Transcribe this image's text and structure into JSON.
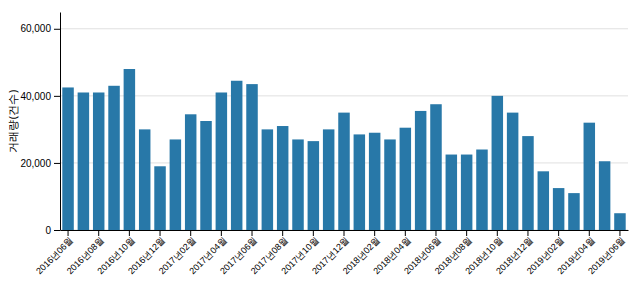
{
  "chart_data": {
    "type": "bar",
    "categories": [
      "2016년06월",
      null,
      "2016년08월",
      null,
      "2016년10월",
      null,
      "2016년12월",
      null,
      "2017년02월",
      null,
      "2017년04월",
      null,
      "2017년06월",
      null,
      "2017년08월",
      null,
      "2017년10월",
      null,
      "2017년12월",
      null,
      "2018년02월",
      null,
      "2018년04월",
      null,
      "2018년06월",
      null,
      "2018년08월",
      null,
      "2018년10월",
      null,
      "2018년12월",
      null,
      "2019년02월",
      null,
      "2019년04월",
      null,
      "2019년06월"
    ],
    "values": [
      42500,
      41000,
      41000,
      43000,
      48000,
      30000,
      19000,
      27000,
      34500,
      32500,
      41000,
      44500,
      43500,
      30000,
      31000,
      27000,
      26500,
      30000,
      35000,
      28500,
      29000,
      27000,
      30500,
      35500,
      37500,
      22500,
      22500,
      24000,
      40000,
      35000,
      28000,
      17500,
      12500,
      11000,
      32000,
      20500,
      5000
    ],
    "color": "#2878a8",
    "y_label": "거래량(건수)",
    "ylim": [
      0,
      65000
    ],
    "yticks": [
      0,
      {
        "value": 20000,
        "label": "20,000"
      },
      {
        "value": 40000,
        "label": "40,000"
      },
      {
        "value": 60000,
        "label": "60,000"
      }
    ],
    "grid": true
  }
}
